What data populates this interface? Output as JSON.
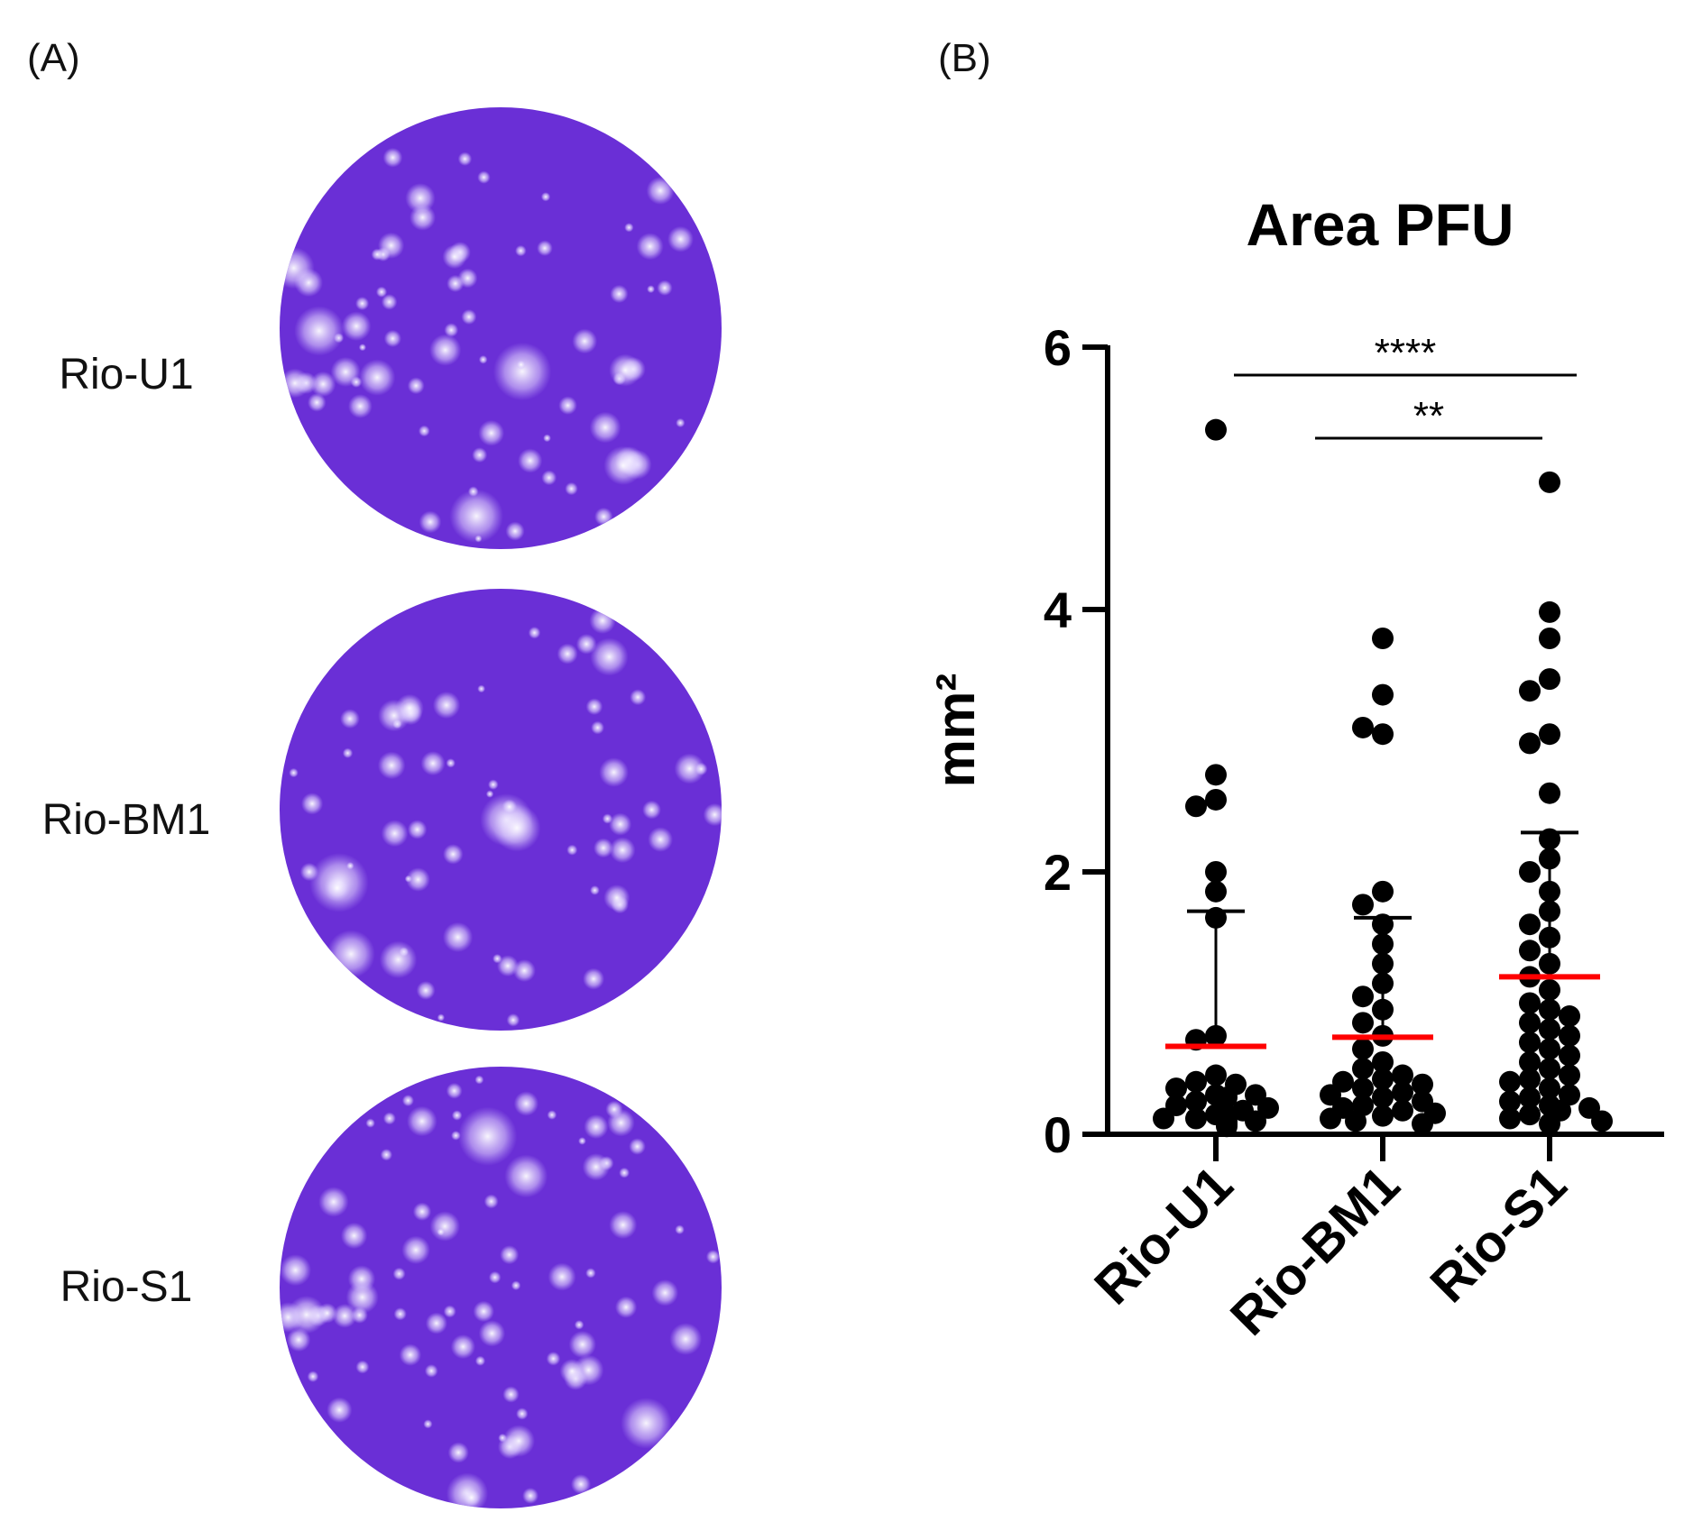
{
  "panels": {
    "a_label": "(A)",
    "b_label": "(B)"
  },
  "plates": [
    {
      "label": "Rio-U1"
    },
    {
      "label": "Rio-BM1"
    },
    {
      "label": "Rio-S1"
    }
  ],
  "colors": {
    "plate_fill": "#6a2fd6",
    "plate_spot": "#e8e0ff",
    "mean_line": "#ff0000",
    "points": "#000000"
  },
  "chart_data": {
    "type": "scatter",
    "title": "Area PFU",
    "ylabel": "mm²",
    "xlabel": "",
    "ylim": [
      0,
      6
    ],
    "yticks": [
      "0",
      "2",
      "4",
      "6"
    ],
    "categories": [
      "Rio-U1",
      "Rio-BM1",
      "Rio-S1"
    ],
    "series": [
      {
        "name": "Rio-U1",
        "mean": 0.67,
        "sd_upper": 1.7,
        "values": [
          5.37,
          2.74,
          2.55,
          2.5,
          2.0,
          1.85,
          1.65,
          0.75,
          0.72,
          0.45,
          0.4,
          0.38,
          0.35,
          0.3,
          0.3,
          0.28,
          0.25,
          0.22,
          0.2,
          0.18,
          0.15,
          0.15,
          0.12,
          0.12,
          0.1,
          0.1,
          0.08,
          0.08,
          0.06
        ]
      },
      {
        "name": "Rio-BM1",
        "mean": 0.74,
        "sd_upper": 1.65,
        "values": [
          3.78,
          3.35,
          3.05,
          3.1,
          1.85,
          1.75,
          1.6,
          1.45,
          1.3,
          1.15,
          1.05,
          0.95,
          0.85,
          0.75,
          0.65,
          0.55,
          0.5,
          0.45,
          0.42,
          0.4,
          0.38,
          0.35,
          0.32,
          0.3,
          0.28,
          0.25,
          0.22,
          0.2,
          0.18,
          0.16,
          0.14,
          0.12,
          0.1,
          0.08
        ]
      },
      {
        "name": "Rio-S1",
        "mean": 1.2,
        "sd_upper": 2.3,
        "values": [
          4.97,
          3.98,
          3.78,
          3.47,
          3.38,
          3.05,
          2.98,
          2.6,
          2.25,
          2.1,
          2.0,
          1.85,
          1.7,
          1.6,
          1.5,
          1.4,
          1.3,
          1.2,
          1.1,
          1.0,
          0.95,
          0.9,
          0.85,
          0.8,
          0.75,
          0.7,
          0.65,
          0.6,
          0.55,
          0.5,
          0.45,
          0.42,
          0.4,
          0.35,
          0.3,
          0.28,
          0.25,
          0.22,
          0.2,
          0.18,
          0.15,
          0.12,
          0.1,
          0.08
        ]
      }
    ],
    "significance": [
      {
        "from": 0,
        "to": 2,
        "label": "****"
      },
      {
        "from": 1,
        "to": 2,
        "label": "**"
      }
    ]
  }
}
